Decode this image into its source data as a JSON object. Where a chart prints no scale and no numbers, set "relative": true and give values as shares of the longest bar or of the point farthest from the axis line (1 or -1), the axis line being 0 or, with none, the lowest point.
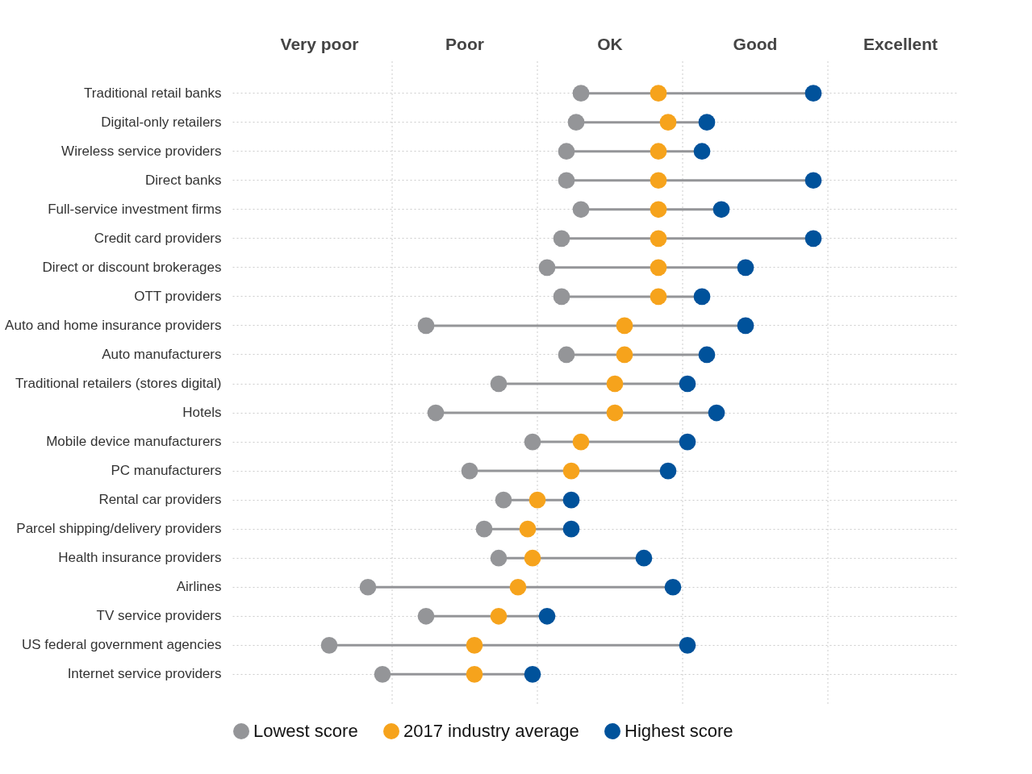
{
  "chart_data": {
    "type": "lollipop",
    "orientation": "horizontal",
    "relative": true,
    "categories": [
      "Traditional retail banks",
      "Digital-only retailers",
      "Wireless service providers",
      "Direct banks",
      "Full-service investment firms",
      "Credit card providers",
      "Direct or discount brokerages",
      "OTT providers",
      "Auto and home insurance providers",
      "Auto manufacturers",
      "Traditional retailers (stores digital)",
      "Hotels",
      "Mobile device manufacturers",
      "PC manufacturers",
      "Rental car providers",
      "Parcel shipping/delivery providers",
      "Health insurance providers",
      "Airlines",
      "TV service providers",
      "US federal government agencies",
      "Internet service providers"
    ],
    "series": [
      {
        "name": "Lowest score",
        "color": "#949598",
        "values": [
          0.52,
          0.51,
          0.49,
          0.49,
          0.52,
          0.48,
          0.45,
          0.48,
          0.2,
          0.49,
          0.35,
          0.22,
          0.42,
          0.29,
          0.36,
          0.32,
          0.35,
          0.08,
          0.2,
          0,
          0.11
        ]
      },
      {
        "name": "2017 industry average",
        "color": "#f6a31c",
        "values": [
          0.68,
          0.7,
          0.68,
          0.68,
          0.68,
          0.68,
          0.68,
          0.68,
          0.61,
          0.61,
          0.59,
          0.59,
          0.52,
          0.5,
          0.43,
          0.41,
          0.42,
          0.39,
          0.35,
          0.3,
          0.3
        ]
      },
      {
        "name": "Highest score",
        "color": "#00529b",
        "values": [
          1.0,
          0.78,
          0.77,
          1.0,
          0.81,
          1.0,
          0.86,
          0.77,
          0.86,
          0.78,
          0.74,
          0.8,
          0.74,
          0.7,
          0.5,
          0.5,
          0.65,
          0.71,
          0.45,
          0.74,
          0.42
        ]
      }
    ],
    "annotations": [
      "Very poor",
      "Poor",
      "OK",
      "Good",
      "Excellent"
    ],
    "grid": true,
    "legend": "bottom",
    "marker": "circle"
  }
}
